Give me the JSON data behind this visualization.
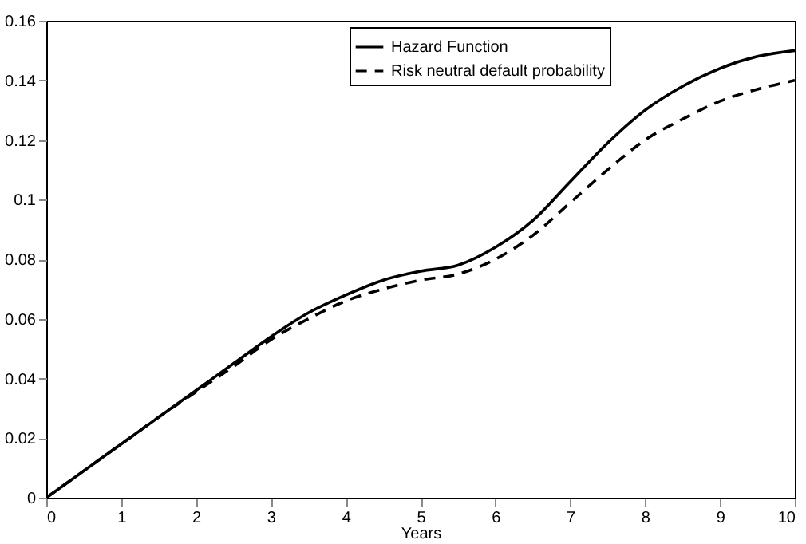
{
  "chart_data": {
    "type": "line",
    "xlabel": "Years",
    "x": [
      0,
      0.5,
      1,
      1.5,
      2,
      2.5,
      3,
      3.5,
      4,
      4.5,
      5,
      5.5,
      6,
      6.5,
      7,
      7.5,
      8,
      8.5,
      9,
      9.5,
      10
    ],
    "series": [
      {
        "name": "Hazard Function",
        "color": "#000000",
        "line_style": "solid",
        "values": [
          0,
          0.009,
          0.018,
          0.027,
          0.036,
          0.045,
          0.054,
          0.062,
          0.068,
          0.073,
          0.076,
          0.078,
          0.084,
          0.093,
          0.106,
          0.119,
          0.13,
          0.138,
          0.144,
          0.148,
          0.15
        ]
      },
      {
        "name": "Risk neutral default probability",
        "color": "#000000",
        "line_style": "dashed",
        "values": [
          0,
          0.009,
          0.018,
          0.027,
          0.0355,
          0.044,
          0.053,
          0.06,
          0.066,
          0.07,
          0.073,
          0.075,
          0.08,
          0.088,
          0.099,
          0.11,
          0.12,
          0.127,
          0.133,
          0.137,
          0.14
        ]
      }
    ],
    "xlim": [
      0,
      10
    ],
    "xticks": [
      0,
      1,
      2,
      3,
      4,
      5,
      6,
      7,
      8,
      9,
      10
    ],
    "ylim": [
      0,
      0.16
    ],
    "yticks": [
      0,
      0.02,
      0.04,
      0.06,
      0.08,
      0.1,
      0.12,
      0.14,
      0.16
    ],
    "grid": false,
    "legend": "top",
    "marker": "none"
  }
}
